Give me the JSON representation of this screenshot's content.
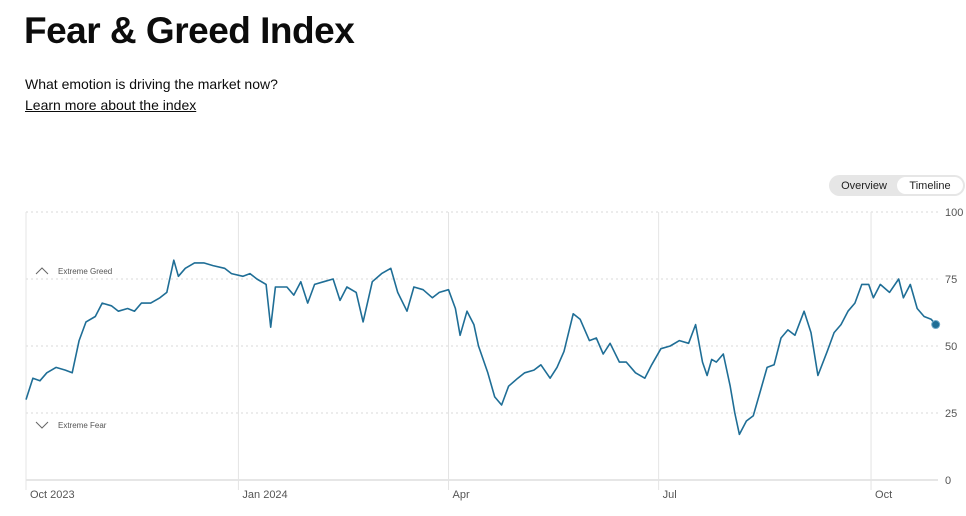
{
  "header": {
    "title": "Fear & Greed Index",
    "subtitle": "What emotion is driving the market now?",
    "learn_more": "Learn more about the index"
  },
  "toggle": {
    "overview": "Overview",
    "timeline": "Timeline",
    "selected": "Timeline"
  },
  "colors": {
    "line": "#1f6e96",
    "grid": "#d9d9d9",
    "axis": "#cccccc",
    "text": "#555555"
  },
  "zones": {
    "greed": {
      "label": "Extreme Greed",
      "icon": "chevron-up-icon",
      "value": 75
    },
    "fear": {
      "label": "Extreme Fear",
      "icon": "chevron-down-icon",
      "value": 25
    }
  },
  "chart_data": {
    "type": "line",
    "title": "",
    "xlabel": "",
    "ylabel": "",
    "ylim": [
      0,
      100
    ],
    "yticks": [
      0,
      25,
      50,
      75,
      100
    ],
    "xticks": [
      {
        "label": "Oct 2023",
        "date": "2023-10-01"
      },
      {
        "label": "Jan 2024",
        "date": "2024-01-01"
      },
      {
        "label": "Apr",
        "date": "2024-04-01"
      },
      {
        "label": "Jul",
        "date": "2024-07-01"
      },
      {
        "label": "Oct",
        "date": "2024-10-01"
      }
    ],
    "xlim": [
      "2023-10-01",
      "2024-10-30"
    ],
    "grid": true,
    "series": [
      {
        "points": [
          [
            "2023-10-01",
            30
          ],
          [
            "2023-10-04",
            38
          ],
          [
            "2023-10-07",
            37
          ],
          [
            "2023-10-10",
            40
          ],
          [
            "2023-10-14",
            42
          ],
          [
            "2023-10-18",
            41
          ],
          [
            "2023-10-21",
            40
          ],
          [
            "2023-10-24",
            52
          ],
          [
            "2023-10-27",
            59
          ],
          [
            "2023-10-31",
            61
          ],
          [
            "2023-11-03",
            66
          ],
          [
            "2023-11-07",
            65
          ],
          [
            "2023-11-10",
            63
          ],
          [
            "2023-11-14",
            64
          ],
          [
            "2023-11-17",
            63
          ],
          [
            "2023-11-20",
            66
          ],
          [
            "2023-11-24",
            66
          ],
          [
            "2023-11-28",
            68
          ],
          [
            "2023-12-01",
            70
          ],
          [
            "2023-12-04",
            82
          ],
          [
            "2023-12-06",
            76
          ],
          [
            "2023-12-09",
            79
          ],
          [
            "2023-12-13",
            81
          ],
          [
            "2023-12-17",
            81
          ],
          [
            "2023-12-21",
            80
          ],
          [
            "2023-12-26",
            79
          ],
          [
            "2023-12-29",
            77
          ],
          [
            "2024-01-03",
            76
          ],
          [
            "2024-01-06",
            77
          ],
          [
            "2024-01-09",
            75
          ],
          [
            "2024-01-13",
            73
          ],
          [
            "2024-01-15",
            57
          ],
          [
            "2024-01-17",
            72
          ],
          [
            "2024-01-22",
            72
          ],
          [
            "2024-01-25",
            69
          ],
          [
            "2024-01-28",
            74
          ],
          [
            "2024-01-31",
            66
          ],
          [
            "2024-02-03",
            73
          ],
          [
            "2024-02-07",
            74
          ],
          [
            "2024-02-11",
            75
          ],
          [
            "2024-02-14",
            67
          ],
          [
            "2024-02-17",
            72
          ],
          [
            "2024-02-21",
            70
          ],
          [
            "2024-02-24",
            59
          ],
          [
            "2024-02-28",
            74
          ],
          [
            "2024-03-03",
            77
          ],
          [
            "2024-03-07",
            79
          ],
          [
            "2024-03-10",
            70
          ],
          [
            "2024-03-14",
            63
          ],
          [
            "2024-03-17",
            72
          ],
          [
            "2024-03-21",
            71
          ],
          [
            "2024-03-25",
            68
          ],
          [
            "2024-03-28",
            70
          ],
          [
            "2024-04-01",
            71
          ],
          [
            "2024-04-04",
            64
          ],
          [
            "2024-04-06",
            54
          ],
          [
            "2024-04-09",
            63
          ],
          [
            "2024-04-12",
            58
          ],
          [
            "2024-04-14",
            50
          ],
          [
            "2024-04-18",
            40
          ],
          [
            "2024-04-21",
            31
          ],
          [
            "2024-04-24",
            28
          ],
          [
            "2024-04-27",
            35
          ],
          [
            "2024-05-01",
            38
          ],
          [
            "2024-05-04",
            40
          ],
          [
            "2024-05-08",
            41
          ],
          [
            "2024-05-11",
            43
          ],
          [
            "2024-05-15",
            38
          ],
          [
            "2024-05-18",
            42
          ],
          [
            "2024-05-21",
            48
          ],
          [
            "2024-05-25",
            62
          ],
          [
            "2024-05-28",
            60
          ],
          [
            "2024-06-01",
            52
          ],
          [
            "2024-06-04",
            53
          ],
          [
            "2024-06-07",
            47
          ],
          [
            "2024-06-10",
            51
          ],
          [
            "2024-06-14",
            44
          ],
          [
            "2024-06-17",
            44
          ],
          [
            "2024-06-21",
            40
          ],
          [
            "2024-06-25",
            38
          ],
          [
            "2024-06-28",
            43
          ],
          [
            "2024-07-02",
            49
          ],
          [
            "2024-07-06",
            50
          ],
          [
            "2024-07-10",
            52
          ],
          [
            "2024-07-14",
            51
          ],
          [
            "2024-07-17",
            58
          ],
          [
            "2024-07-20",
            44
          ],
          [
            "2024-07-22",
            39
          ],
          [
            "2024-07-24",
            45
          ],
          [
            "2024-07-26",
            44
          ],
          [
            "2024-07-29",
            47
          ],
          [
            "2024-08-01",
            35
          ],
          [
            "2024-08-03",
            25
          ],
          [
            "2024-08-05",
            17
          ],
          [
            "2024-08-08",
            22
          ],
          [
            "2024-08-11",
            24
          ],
          [
            "2024-08-14",
            33
          ],
          [
            "2024-08-17",
            42
          ],
          [
            "2024-08-20",
            43
          ],
          [
            "2024-08-23",
            53
          ],
          [
            "2024-08-26",
            56
          ],
          [
            "2024-08-29",
            54
          ],
          [
            "2024-09-02",
            63
          ],
          [
            "2024-09-05",
            55
          ],
          [
            "2024-09-08",
            39
          ],
          [
            "2024-09-12",
            48
          ],
          [
            "2024-09-15",
            55
          ],
          [
            "2024-09-18",
            58
          ],
          [
            "2024-09-21",
            63
          ],
          [
            "2024-09-24",
            66
          ],
          [
            "2024-09-27",
            73
          ],
          [
            "2024-09-30",
            73
          ],
          [
            "2024-10-02",
            68
          ],
          [
            "2024-10-05",
            73
          ],
          [
            "2024-10-09",
            70
          ],
          [
            "2024-10-13",
            75
          ],
          [
            "2024-10-15",
            68
          ],
          [
            "2024-10-18",
            73
          ],
          [
            "2024-10-21",
            64
          ],
          [
            "2024-10-24",
            61
          ],
          [
            "2024-10-27",
            60
          ],
          [
            "2024-10-29",
            58
          ]
        ]
      }
    ]
  }
}
